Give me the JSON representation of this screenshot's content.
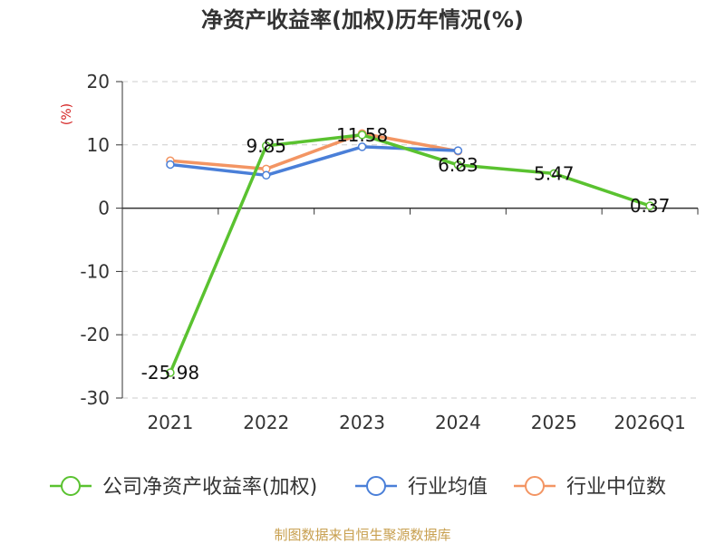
{
  "chart_data": {
    "type": "line",
    "title": "净资产收益率(加权)历年情况(%)",
    "ylabel": "(%)",
    "categories": [
      "2021",
      "2022",
      "2023",
      "2024",
      "2025",
      "2026Q1"
    ],
    "ylim": [
      -30,
      20
    ],
    "yticks": [
      "20",
      "10",
      "0",
      "-10",
      "-20",
      "-30"
    ],
    "grid": true,
    "legend_position": "bottom",
    "series": [
      {
        "name": "公司净资产收益率(加权)",
        "color": "#5ac230",
        "values": [
          -25.98,
          9.85,
          11.58,
          6.83,
          5.47,
          0.37
        ],
        "labels": [
          "-25.98",
          "9.85",
          "11.58",
          "6.83",
          "5.47",
          "0.37"
        ]
      },
      {
        "name": "行业均值",
        "color": "#4a7fd8",
        "values": [
          6.9,
          5.2,
          9.7,
          9.1,
          null,
          null
        ]
      },
      {
        "name": "行业中位数",
        "color": "#f39563",
        "values": [
          7.5,
          6.2,
          11.8,
          9.0,
          null,
          null
        ]
      }
    ]
  },
  "ylabel_color": "#d42020",
  "source_text": "制图数据来自恒生聚源数据库",
  "source_color": "#c8a050"
}
